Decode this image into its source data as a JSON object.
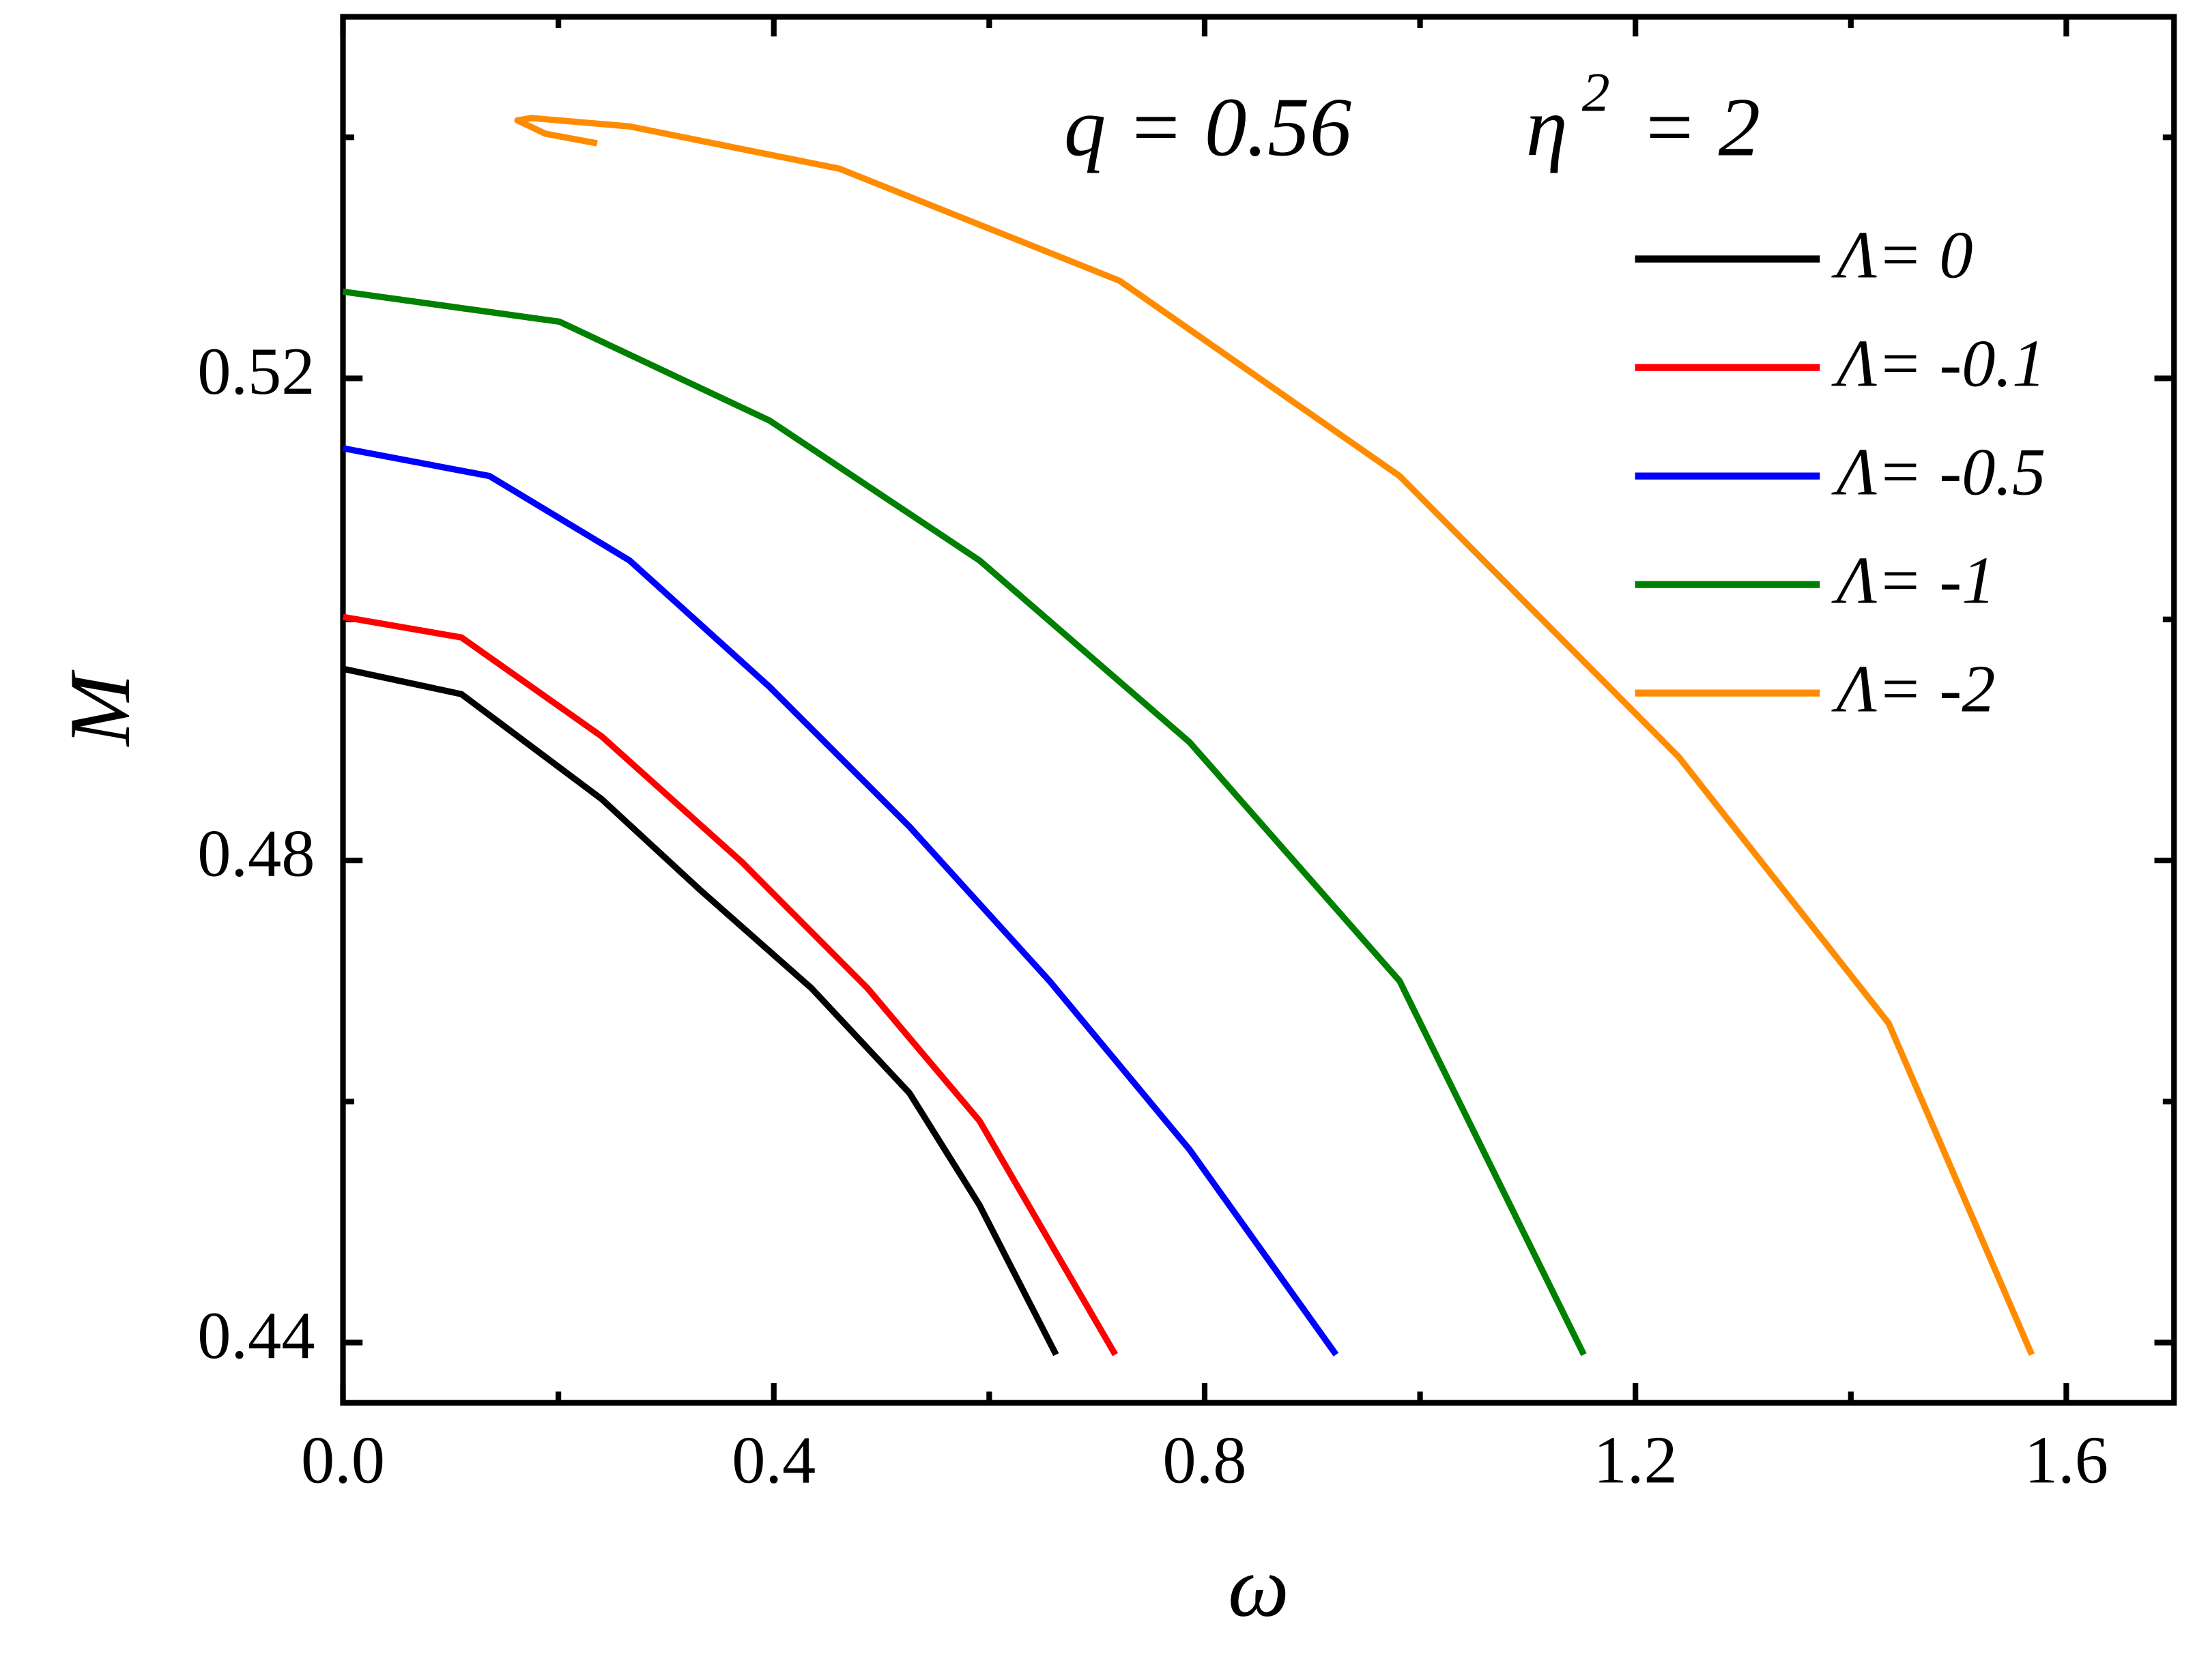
{
  "chart_data": {
    "type": "line",
    "xlabel": "ω",
    "ylabel": "M",
    "annotation": [
      "q = 0.56",
      "η",
      "2",
      "= 2"
    ],
    "xlim": [
      0,
      1.7
    ],
    "ylim": [
      0.435,
      0.55
    ],
    "xticks": [
      {
        "value": 0,
        "label": "0.0"
      },
      0.4,
      0.8,
      1.2,
      1.6
    ],
    "yticks": [
      0.44,
      0.48,
      0.52
    ],
    "xminorticks": [
      0.2,
      0.6,
      1.0,
      1.4
    ],
    "yminorticks": [
      0.46,
      0.5,
      0.54
    ],
    "legend": "upper right",
    "series": [
      {
        "name": "Λ= 0",
        "color": "#000000",
        "x": [
          0,
          0.11,
          0.24,
          0.331,
          0.435,
          0.526,
          0.591,
          0.662
        ],
        "values": [
          0.4959,
          0.4938,
          0.4851,
          0.4776,
          0.4694,
          0.4607,
          0.4514,
          0.439
        ]
      },
      {
        "name": "Λ= -0.1",
        "color": "#ff0000",
        "x": [
          0,
          0.11,
          0.24,
          0.37,
          0.487,
          0.591,
          0.717
        ],
        "values": [
          0.5002,
          0.4985,
          0.4903,
          0.4799,
          0.4694,
          0.4584,
          0.439
        ]
      },
      {
        "name": "Λ= -0.5",
        "color": "#0000ff",
        "x": [
          0,
          0.136,
          0.266,
          0.396,
          0.526,
          0.656,
          0.786,
          0.922
        ],
        "values": [
          0.5142,
          0.5119,
          0.5049,
          0.4944,
          0.4828,
          0.47,
          0.456,
          0.439
        ]
      },
      {
        "name": "Λ= -1",
        "color": "#008000",
        "x": [
          0,
          0.201,
          0.396,
          0.591,
          0.786,
          0.981,
          1.152
        ],
        "values": [
          0.5272,
          0.5247,
          0.5165,
          0.5049,
          0.4898,
          0.47,
          0.439
        ]
      },
      {
        "name": "Λ= -2",
        "color": "#ff8c00",
        "x": [
          0.236,
          0.188,
          0.162,
          0.175,
          0.266,
          0.461,
          0.721,
          0.981,
          1.24,
          1.435,
          1.568
        ],
        "values": [
          0.5395,
          0.5403,
          0.5414,
          0.5416,
          0.5409,
          0.5374,
          0.5281,
          0.5119,
          0.4886,
          0.4665,
          0.439
        ]
      }
    ]
  }
}
